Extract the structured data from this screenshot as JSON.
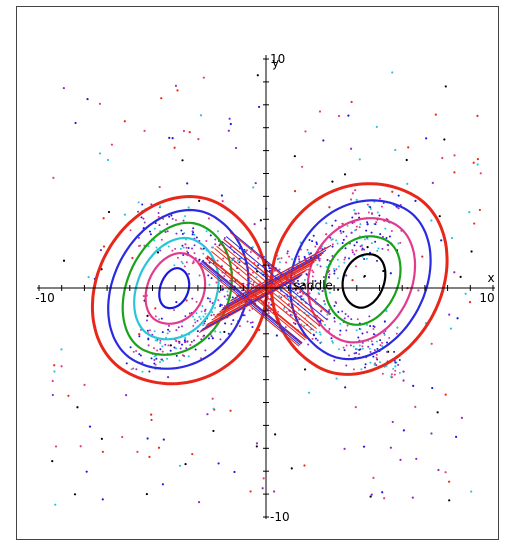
{
  "chart_data": {
    "type": "scatter",
    "title": "",
    "xlabel": "x",
    "ylabel": "y",
    "xlim": [
      -10,
      10
    ],
    "ylim": [
      -10,
      10
    ],
    "grid": false,
    "legend": "none",
    "tick_labels": {
      "x_min": "-10",
      "x_max": "10",
      "y_max": "10",
      "y_min": "-10"
    },
    "annotations": [
      {
        "text": "saddle",
        "x": 1.2,
        "y": 0.1
      }
    ],
    "series": [
      {
        "kind": "orbits-left",
        "color": "#e8271b",
        "values": []
      }
    ],
    "orbit_families": [
      {
        "side": "left",
        "center": [
          -4.1,
          0.0
        ],
        "color": "#1a1adf",
        "rx": 0.55,
        "ry": 0.9,
        "tilt": -20
      },
      {
        "side": "left",
        "center": [
          -4.1,
          0.0
        ],
        "color": "#e23b8c",
        "rx": 1.1,
        "ry": 1.6,
        "tilt": -25
      },
      {
        "side": "left",
        "center": [
          -4.1,
          0.0
        ],
        "color": "#29c6d8",
        "rx": 1.55,
        "ry": 2.3,
        "tilt": -25
      },
      {
        "side": "left",
        "center": [
          -4.1,
          0.0
        ],
        "color": "#1aa21a",
        "rx": 2.0,
        "ry": 3.0,
        "tilt": -25
      },
      {
        "side": "left",
        "center": [
          -4.1,
          0.0
        ],
        "color": "#2a2ae0",
        "rx": 2.6,
        "ry": 3.6,
        "tilt": -28
      },
      {
        "side": "left",
        "center": [
          -4.1,
          0.0
        ],
        "color": "#e8271b",
        "rx": 3.3,
        "ry": 4.2,
        "tilt": -30
      },
      {
        "side": "right",
        "center": [
          4.4,
          0.3
        ],
        "color": "#000000",
        "rx": 0.8,
        "ry": 1.2,
        "tilt": -20
      },
      {
        "side": "right",
        "center": [
          4.4,
          0.3
        ],
        "color": "#1aa21a",
        "rx": 1.4,
        "ry": 2.0,
        "tilt": -25
      },
      {
        "side": "right",
        "center": [
          4.4,
          0.3
        ],
        "color": "#e23b8c",
        "rx": 2.0,
        "ry": 2.8,
        "tilt": -25
      },
      {
        "side": "right",
        "center": [
          4.4,
          0.3
        ],
        "color": "#2a2ae0",
        "rx": 2.6,
        "ry": 3.6,
        "tilt": -28
      },
      {
        "side": "right",
        "center": [
          4.4,
          0.3
        ],
        "color": "#e8271b",
        "rx": 3.3,
        "ry": 4.3,
        "tilt": -30
      }
    ],
    "scatter_colors": [
      "#1a1adf",
      "#e23b8c",
      "#29c6d8",
      "#8b2cc9",
      "#e8271b",
      "#000000"
    ]
  }
}
